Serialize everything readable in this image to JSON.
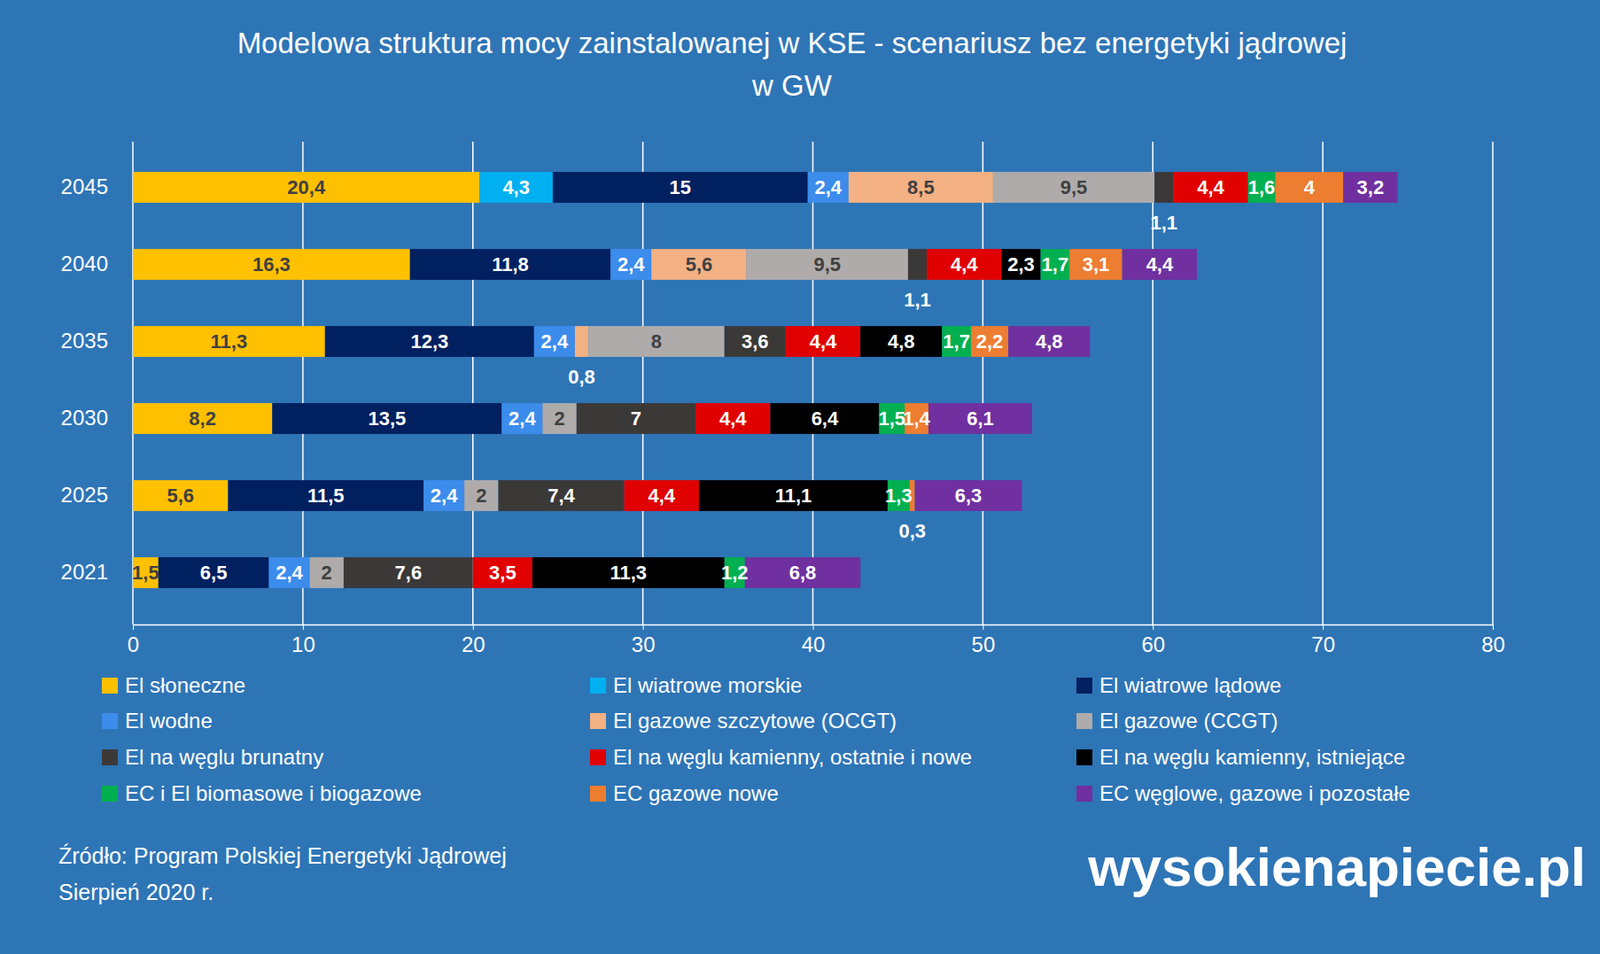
{
  "chart_data": {
    "type": "bar",
    "orientation": "horizontal",
    "stacked": true,
    "data_labels": true,
    "grid": true,
    "legend": "bottom",
    "title": "Modelowa struktura mocy zainstalowanej w KSE - scenariusz bez energetyki jądrowej",
    "subtitle": "w GW",
    "annotations": [
      "Źródło: Program Polskiej Energetyki Jądrowej",
      "Sierpień 2020 r.",
      "wysokienapiecie.pl"
    ],
    "categories": [
      "2045",
      "2040",
      "2035",
      "2030",
      "2025",
      "2021"
    ],
    "xlim": [
      0,
      80
    ],
    "xticks": [
      0,
      10,
      20,
      30,
      40,
      50,
      60,
      70,
      80
    ],
    "series": [
      {
        "name": "El słoneczne",
        "color": "#FFC000",
        "values": [
          20.4,
          16.3,
          11.3,
          8.2,
          5.6,
          1.5
        ],
        "value_labels": [
          "20,4",
          "16,3",
          "11,3",
          "8,2",
          "5,6",
          "1,5"
        ]
      },
      {
        "name": "El wiatrowe morskie",
        "color": "#00B0F0",
        "values": [
          4.3,
          null,
          null,
          null,
          null,
          null
        ],
        "value_labels": [
          "4,3",
          null,
          null,
          null,
          null,
          null
        ]
      },
      {
        "name": "El wiatrowe lądowe",
        "color": "#002060",
        "values": [
          15,
          11.8,
          12.3,
          13.5,
          11.5,
          6.5
        ],
        "value_labels": [
          "15",
          "11,8",
          "12,3",
          "13,5",
          "11,5",
          "6,5"
        ]
      },
      {
        "name": "El wodne",
        "color": "#3C8CEC",
        "values": [
          2.4,
          2.4,
          2.4,
          2.4,
          2.4,
          2.4
        ],
        "value_labels": [
          "2,4",
          "2,4",
          "2,4",
          "2,4",
          "2,4",
          "2,4"
        ]
      },
      {
        "name": "El gazowe szczytowe (OCGT)",
        "color": "#F4B183",
        "values": [
          8.5,
          5.6,
          0.8,
          null,
          null,
          null
        ],
        "value_labels": [
          "8,5",
          "5,6",
          "0,8",
          null,
          null,
          null
        ]
      },
      {
        "name": "El gazowe (CCGT)",
        "color": "#AFABAB",
        "values": [
          9.5,
          9.5,
          8,
          2,
          2,
          2
        ],
        "value_labels": [
          "9,5",
          "9,5",
          "8",
          "2",
          "2",
          "2"
        ]
      },
      {
        "name": "El na węglu brunatny",
        "color": "#3B3838",
        "values": [
          1.1,
          1.1,
          3.6,
          7,
          7.4,
          7.6
        ],
        "value_labels": [
          "1,1",
          "1,1",
          "3,6",
          "7",
          "7,4",
          "7,6"
        ]
      },
      {
        "name": "El na węglu kamienny, ostatnie i nowe",
        "color": "#E00000",
        "values": [
          4.4,
          4.4,
          4.4,
          4.4,
          4.4,
          3.5
        ],
        "value_labels": [
          "4,4",
          "4,4",
          "4,4",
          "4,4",
          "4,4",
          "3,5"
        ]
      },
      {
        "name": "El na węglu kamienny, istniejące",
        "color": "#000000",
        "values": [
          null,
          2.3,
          4.8,
          6.4,
          11.1,
          11.3
        ],
        "value_labels": [
          null,
          "2,3",
          "4,8",
          "6,4",
          "11,1",
          "11,3"
        ]
      },
      {
        "name": "EC i El biomasowe i biogazowe",
        "color": "#00B050",
        "values": [
          1.6,
          1.7,
          1.7,
          1.5,
          1.3,
          1.2
        ],
        "value_labels": [
          "1,6",
          "1,7",
          "1,7",
          "1,5",
          "1,3",
          "1,2"
        ]
      },
      {
        "name": "EC gazowe nowe",
        "color": "#ED7D31",
        "values": [
          4,
          3.1,
          2.2,
          1.4,
          0.3,
          null
        ],
        "value_labels": [
          "4",
          "3,1",
          "2,2",
          "1,4",
          "0,3",
          null
        ]
      },
      {
        "name": "EC węglowe, gazowe i pozostałe",
        "color": "#7030A0",
        "values": [
          3.2,
          4.4,
          4.8,
          6.1,
          6.3,
          6.8
        ],
        "value_labels": [
          "3,2",
          "4,4",
          "4,8",
          "6,1",
          "6,3",
          "6,8"
        ]
      }
    ]
  }
}
